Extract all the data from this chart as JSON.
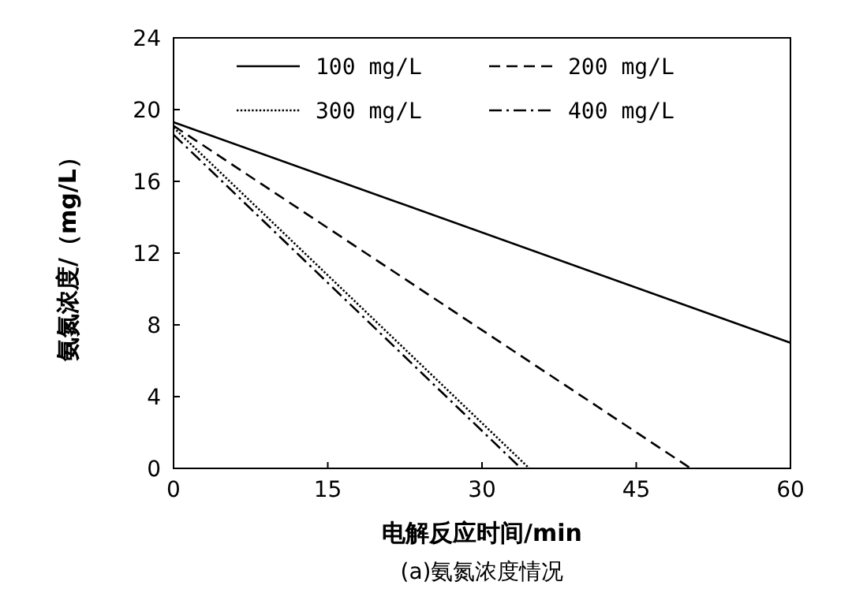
{
  "chart_data": {
    "type": "line",
    "xlabel": "电解反应时间/min",
    "ylabel": "氨氮浓度/（mg/L）",
    "xlim": [
      0,
      60
    ],
    "xticks": [
      0,
      15,
      30,
      45,
      60
    ],
    "ylim": [
      0,
      24
    ],
    "yticks": [
      0,
      4,
      8,
      12,
      16,
      20,
      24
    ],
    "legend": "top",
    "grid": false,
    "series": [
      {
        "name": "100 mg/L",
        "color": "#000000",
        "line_style": "solid",
        "x": [
          0,
          60
        ],
        "values": [
          19.3,
          7
        ]
      },
      {
        "name": "200 mg/L",
        "color": "#000000",
        "line_style": "dashed",
        "x": [
          0,
          50.3
        ],
        "values": [
          19.1,
          0
        ]
      },
      {
        "name": "300 mg/L",
        "color": "#000000",
        "line_style": "dotted",
        "x": [
          0,
          34.6
        ],
        "values": [
          19,
          0
        ]
      },
      {
        "name": "400 mg/L",
        "color": "#000000",
        "line_style": "dashdot",
        "x": [
          0,
          33.8
        ],
        "values": [
          18.6,
          0
        ]
      }
    ],
    "annotations": [
      "(a)氨氮浓度情况"
    ]
  }
}
